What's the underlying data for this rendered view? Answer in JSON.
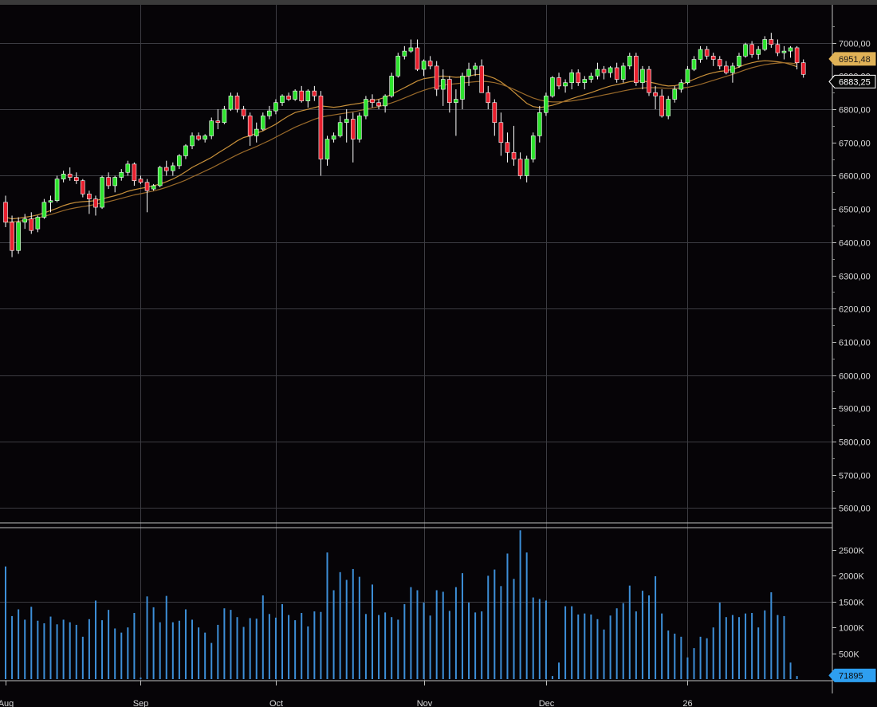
{
  "chart_data": [
    {
      "type": "candlestick",
      "title": "",
      "ylim": [
        5560,
        7100
      ],
      "yticks": [
        {
          "v": 7000,
          "label": "7000,00"
        },
        {
          "v": 6900,
          "label": "6900,00"
        },
        {
          "v": 6800,
          "label": "6800,00"
        },
        {
          "v": 6700,
          "label": "6700,00"
        },
        {
          "v": 6600,
          "label": "6600,00"
        },
        {
          "v": 6500,
          "label": "6500,00"
        },
        {
          "v": 6400,
          "label": "6400,00"
        },
        {
          "v": 6300,
          "label": "6300,00"
        },
        {
          "v": 6200,
          "label": "6200,00"
        },
        {
          "v": 6100,
          "label": "6100,00"
        },
        {
          "v": 6000,
          "label": "6000,00"
        },
        {
          "v": 5900,
          "label": "5900,00"
        },
        {
          "v": 5800,
          "label": "5800,00"
        },
        {
          "v": 5700,
          "label": "5700,00"
        },
        {
          "v": 5600,
          "label": "5600,00"
        }
      ],
      "x_labels": [
        {
          "i": 0,
          "label": "Aug"
        },
        {
          "i": 21,
          "label": "Sep"
        },
        {
          "i": 42,
          "label": "Oct"
        },
        {
          "i": 65,
          "label": "Nov"
        },
        {
          "i": 84,
          "label": "Dec"
        },
        {
          "i": 106,
          "label": "26"
        }
      ],
      "grid": true,
      "candles": [
        [
          6520,
          6540,
          6445,
          6460
        ],
        [
          6460,
          6480,
          6355,
          6375
        ],
        [
          6375,
          6475,
          6365,
          6460
        ],
        [
          6460,
          6485,
          6440,
          6470
        ],
        [
          6470,
          6490,
          6425,
          6435
        ],
        [
          6440,
          6480,
          6430,
          6475
        ],
        [
          6475,
          6530,
          6470,
          6520
        ],
        [
          6520,
          6540,
          6490,
          6525
        ],
        [
          6525,
          6600,
          6520,
          6590
        ],
        [
          6590,
          6615,
          6580,
          6605
        ],
        [
          6605,
          6625,
          6585,
          6595
        ],
        [
          6595,
          6610,
          6575,
          6585
        ],
        [
          6585,
          6590,
          6535,
          6545
        ],
        [
          6545,
          6555,
          6485,
          6530
        ],
        [
          6530,
          6540,
          6480,
          6505
        ],
        [
          6505,
          6600,
          6500,
          6595
        ],
        [
          6595,
          6610,
          6560,
          6570
        ],
        [
          6570,
          6600,
          6550,
          6595
        ],
        [
          6595,
          6620,
          6585,
          6610
        ],
        [
          6610,
          6645,
          6600,
          6635
        ],
        [
          6635,
          6640,
          6570,
          6585
        ],
        [
          6590,
          6600,
          6575,
          6580
        ],
        [
          6580,
          6590,
          6490,
          6555
        ],
        [
          6560,
          6575,
          6555,
          6570
        ],
        [
          6570,
          6630,
          6565,
          6625
        ],
        [
          6625,
          6645,
          6600,
          6615
        ],
        [
          6615,
          6640,
          6600,
          6630
        ],
        [
          6630,
          6665,
          6620,
          6660
        ],
        [
          6660,
          6695,
          6650,
          6690
        ],
        [
          6690,
          6730,
          6680,
          6720
        ],
        [
          6720,
          6730,
          6705,
          6710
        ],
        [
          6710,
          6725,
          6700,
          6720
        ],
        [
          6720,
          6775,
          6710,
          6765
        ],
        [
          6765,
          6800,
          6740,
          6760
        ],
        [
          6760,
          6810,
          6755,
          6800
        ],
        [
          6800,
          6850,
          6795,
          6840
        ],
        [
          6840,
          6850,
          6790,
          6800
        ],
        [
          6800,
          6810,
          6770,
          6780
        ],
        [
          6780,
          6790,
          6690,
          6720
        ],
        [
          6720,
          6760,
          6700,
          6740
        ],
        [
          6740,
          6790,
          6735,
          6780
        ],
        [
          6780,
          6810,
          6770,
          6795
        ],
        [
          6795,
          6830,
          6785,
          6820
        ],
        [
          6820,
          6845,
          6810,
          6840
        ],
        [
          6840,
          6850,
          6825,
          6830
        ],
        [
          6830,
          6860,
          6825,
          6855
        ],
        [
          6855,
          6870,
          6820,
          6825
        ],
        [
          6825,
          6860,
          6805,
          6855
        ],
        [
          6855,
          6870,
          6825,
          6840
        ],
        [
          6840,
          6855,
          6600,
          6650
        ],
        [
          6650,
          6720,
          6630,
          6710
        ],
        [
          6710,
          6730,
          6700,
          6720
        ],
        [
          6720,
          6780,
          6715,
          6760
        ],
        [
          6760,
          6800,
          6700,
          6770
        ],
        [
          6770,
          6790,
          6640,
          6710
        ],
        [
          6710,
          6790,
          6700,
          6780
        ],
        [
          6780,
          6840,
          6770,
          6830
        ],
        [
          6830,
          6845,
          6805,
          6820
        ],
        [
          6820,
          6830,
          6800,
          6810
        ],
        [
          6810,
          6845,
          6790,
          6840
        ],
        [
          6840,
          6910,
          6835,
          6900
        ],
        [
          6900,
          6970,
          6895,
          6960
        ],
        [
          6960,
          6990,
          6950,
          6975
        ],
        [
          6975,
          7010,
          6970,
          6985
        ],
        [
          6985,
          7010,
          6915,
          6920
        ],
        [
          6920,
          6950,
          6900,
          6945
        ],
        [
          6945,
          6960,
          6920,
          6930
        ],
        [
          6930,
          6945,
          6840,
          6860
        ],
        [
          6860,
          6920,
          6810,
          6890
        ],
        [
          6890,
          6900,
          6790,
          6820
        ],
        [
          6820,
          6860,
          6720,
          6830
        ],
        [
          6830,
          6910,
          6800,
          6900
        ],
        [
          6900,
          6940,
          6870,
          6920
        ],
        [
          6920,
          6940,
          6900,
          6930
        ],
        [
          6930,
          6950,
          6850,
          6850
        ],
        [
          6850,
          6870,
          6800,
          6820
        ],
        [
          6820,
          6830,
          6720,
          6760
        ],
        [
          6760,
          6790,
          6660,
          6700
        ],
        [
          6700,
          6730,
          6640,
          6670
        ],
        [
          6670,
          6750,
          6630,
          6650
        ],
        [
          6650,
          6670,
          6590,
          6600
        ],
        [
          6600,
          6660,
          6580,
          6650
        ],
        [
          6650,
          6730,
          6640,
          6720
        ],
        [
          6720,
          6810,
          6700,
          6790
        ],
        [
          6790,
          6850,
          6780,
          6840
        ],
        [
          6840,
          6900,
          6835,
          6895
        ],
        [
          6895,
          6910,
          6860,
          6870
        ],
        [
          6870,
          6890,
          6850,
          6880
        ],
        [
          6880,
          6920,
          6860,
          6910
        ],
        [
          6910,
          6920,
          6870,
          6880
        ],
        [
          6880,
          6900,
          6860,
          6890
        ],
        [
          6890,
          6910,
          6880,
          6900
        ],
        [
          6900,
          6940,
          6890,
          6920
        ],
        [
          6920,
          6930,
          6890,
          6910
        ],
        [
          6910,
          6930,
          6895,
          6925
        ],
        [
          6925,
          6940,
          6880,
          6890
        ],
        [
          6890,
          6940,
          6880,
          6930
        ],
        [
          6930,
          6970,
          6920,
          6960
        ],
        [
          6960,
          6970,
          6870,
          6880
        ],
        [
          6880,
          6930,
          6860,
          6920
        ],
        [
          6920,
          6930,
          6840,
          6850
        ],
        [
          6850,
          6870,
          6800,
          6840
        ],
        [
          6840,
          6860,
          6775,
          6780
        ],
        [
          6780,
          6840,
          6770,
          6830
        ],
        [
          6830,
          6870,
          6820,
          6860
        ],
        [
          6860,
          6890,
          6850,
          6880
        ],
        [
          6880,
          6930,
          6875,
          6920
        ],
        [
          6920,
          6960,
          6915,
          6950
        ],
        [
          6950,
          6990,
          6940,
          6980
        ],
        [
          6980,
          6990,
          6950,
          6960
        ],
        [
          6960,
          6970,
          6930,
          6950
        ],
        [
          6950,
          6960,
          6920,
          6930
        ],
        [
          6930,
          6945,
          6905,
          6910
        ],
        [
          6910,
          6940,
          6880,
          6930
        ],
        [
          6930,
          6970,
          6925,
          6960
        ],
        [
          6960,
          7000,
          6955,
          6995
        ],
        [
          6995,
          7005,
          6955,
          6965
        ],
        [
          6965,
          6990,
          6950,
          6980
        ],
        [
          6980,
          7020,
          6975,
          7010
        ],
        [
          7010,
          7030,
          6985,
          6995
        ],
        [
          6995,
          7010,
          6960,
          6970
        ],
        [
          6970,
          6990,
          6950,
          6975
        ],
        [
          6975,
          6990,
          6955,
          6985
        ],
        [
          6985,
          6990,
          6920,
          6940
        ],
        [
          6940,
          6950,
          6895,
          6905
        ]
      ],
      "series": [
        {
          "name": "",
          "color": "#c8903a",
          "values": [
            6475,
            6470,
            6472,
            6475,
            6478,
            6482,
            6488,
            6495,
            6502,
            6510,
            6516,
            6520,
            6522,
            6523,
            6525,
            6530,
            6535,
            6540,
            6546,
            6553,
            6558,
            6562,
            6565,
            6570,
            6575,
            6582,
            6590,
            6600,
            6612,
            6625,
            6635,
            6645,
            6655,
            6668,
            6680,
            6692,
            6705,
            6715,
            6720,
            6728,
            6735,
            6745,
            6755,
            6768,
            6780,
            6790,
            6795,
            6800,
            6805,
            6810,
            6808,
            6806,
            6808,
            6812,
            6815,
            6818,
            6822,
            6826,
            6830,
            6836,
            6845,
            6855,
            6865,
            6875,
            6885,
            6892,
            6895,
            6898,
            6900,
            6898,
            6896,
            6897,
            6900,
            6904,
            6905,
            6900,
            6893,
            6882,
            6868,
            6852,
            6835,
            6818,
            6808,
            6805,
            6808,
            6812,
            6818,
            6825,
            6832,
            6838,
            6844,
            6850,
            6857,
            6864,
            6870,
            6874,
            6878,
            6883,
            6885,
            6885,
            6882,
            6878,
            6873,
            6870,
            6871,
            6875,
            6882,
            6890,
            6898,
            6905,
            6910,
            6914,
            6916,
            6920,
            6927,
            6935,
            6940,
            6944,
            6946,
            6945,
            6943,
            6940,
            6935,
            6928
          ]
        },
        {
          "name": "",
          "color": "#9a6a2a",
          "values": [
            6460,
            6461,
            6463,
            6466,
            6469,
            6473,
            6478,
            6483,
            6489,
            6495,
            6500,
            6504,
            6507,
            6510,
            6514,
            6518,
            6522,
            6527,
            6532,
            6537,
            6542,
            6546,
            6550,
            6554,
            6559,
            6565,
            6572,
            6579,
            6587,
            6596,
            6605,
            6614,
            6623,
            6633,
            6643,
            6653,
            6663,
            6672,
            6680,
            6688,
            6697,
            6706,
            6716,
            6726,
            6736,
            6746,
            6754,
            6762,
            6770,
            6776,
            6780,
            6783,
            6786,
            6789,
            6792,
            6796,
            6800,
            6804,
            6808,
            6813,
            6819,
            6826,
            6834,
            6842,
            6850,
            6857,
            6863,
            6868,
            6872,
            6875,
            6877,
            6879,
            6881,
            6883,
            6884,
            6883,
            6880,
            6875,
            6868,
            6860,
            6851,
            6842,
            6834,
            6828,
            6824,
            6822,
            6822,
            6823,
            6825,
            6828,
            6831,
            6835,
            6839,
            6843,
            6847,
            6851,
            6855,
            6859,
            6862,
            6864,
            6865,
            6865,
            6864,
            6863,
            6863,
            6864,
            6866,
            6870,
            6875,
            6881,
            6887,
            6893,
            6899,
            6905,
            6912,
            6919,
            6925,
            6930,
            6934,
            6937,
            6939,
            6940,
            6939,
            6937
          ]
        }
      ],
      "tags": [
        {
          "value": 6951.48,
          "label": "6951,48",
          "bg": "#e0b257",
          "fg": "#1a1a1a"
        },
        {
          "value": 6883.25,
          "label": "6883,25",
          "bg": "#070707",
          "fg": "#ffffff",
          "border": "#ffffff"
        }
      ],
      "colors": {
        "up": "#2ee32e",
        "down": "#e8202e",
        "wick": "#ffffff"
      }
    },
    {
      "type": "bar",
      "ylim": [
        0,
        2900
      ],
      "yticks": [
        {
          "v": 2500,
          "label": "2500K"
        },
        {
          "v": 2000,
          "label": "2000K"
        },
        {
          "v": 1500,
          "label": "1500K"
        },
        {
          "v": 1000,
          "label": "1000K"
        },
        {
          "v": 500,
          "label": "500K"
        }
      ],
      "values_k": [
        2180,
        1220,
        1350,
        1150,
        1400,
        1130,
        1080,
        1210,
        1060,
        1150,
        1100,
        1050,
        820,
        1160,
        1520,
        1140,
        1340,
        980,
        900,
        1000,
        1280,
        30,
        1600,
        1390,
        1100,
        1610,
        1100,
        1130,
        1350,
        1150,
        1000,
        900,
        700,
        1050,
        1370,
        1340,
        1200,
        1010,
        1180,
        1170,
        1620,
        1260,
        1190,
        1450,
        1240,
        1140,
        1280,
        1020,
        1310,
        1300,
        2450,
        1720,
        2070,
        1920,
        2130,
        1980,
        1260,
        1830,
        1240,
        1290,
        1200,
        1150,
        1450,
        1780,
        1720,
        1480,
        1230,
        1720,
        1690,
        1320,
        1780,
        2050,
        1480,
        1290,
        1310,
        2000,
        2120,
        1800,
        2430,
        1940,
        2880,
        2450,
        1580,
        1550,
        1520,
        60,
        320,
        1410,
        1410,
        1250,
        1270,
        1250,
        1160,
        960,
        1230,
        1370,
        1470,
        1810,
        1310,
        1710,
        1620,
        1990,
        1270,
        940,
        880,
        820,
        420,
        600,
        820,
        790,
        1000,
        1480,
        1200,
        1240,
        1200,
        1270,
        1280,
        1000,
        1330,
        1680,
        1240,
        1220,
        320,
        60
      ],
      "tag": {
        "value": 71.895,
        "label": "71895",
        "bg": "#2e9ff0",
        "fg": "#0b0b0b"
      },
      "color": "#3d8fd8"
    }
  ]
}
